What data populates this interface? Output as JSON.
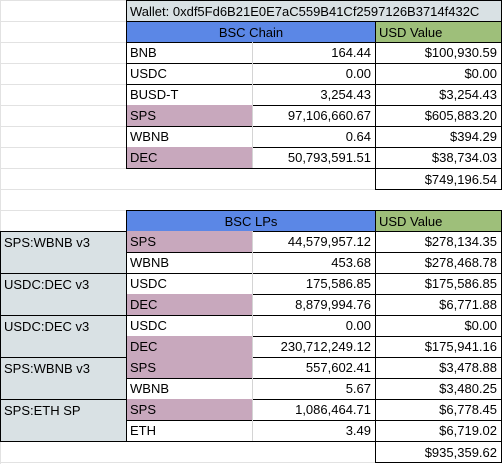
{
  "wallet_label": "Wallet: 0xdf5Fd6B21E0E7aC559B41Cf2597126B3714f432C",
  "bsc_chain": {
    "header": "BSC Chain",
    "usd_header": "USD Value",
    "rows": [
      {
        "token": "BNB",
        "amount": "164.44",
        "usd": "$100,930.59",
        "highlight": false
      },
      {
        "token": "USDC",
        "amount": "0.00",
        "usd": "$0.00",
        "highlight": false
      },
      {
        "token": "BUSD-T",
        "amount": "3,254.43",
        "usd": "$3,254.43",
        "highlight": false
      },
      {
        "token": "SPS",
        "amount": "97,106,660.67",
        "usd": "$605,883.20",
        "highlight": true
      },
      {
        "token": "WBNB",
        "amount": "0.64",
        "usd": "$394.29",
        "highlight": false
      },
      {
        "token": "DEC",
        "amount": "50,793,591.51",
        "usd": "$38,734.03",
        "highlight": true
      }
    ],
    "total": "$749,196.54"
  },
  "bsc_lps": {
    "header": "BSC LPs",
    "usd_header": "USD Value",
    "rows": [
      {
        "pair": "SPS:WBNB v3",
        "token": "SPS",
        "amount": "44,579,957.12",
        "usd": "$278,134.35",
        "highlight": true
      },
      {
        "pair": "",
        "token": "WBNB",
        "amount": "453.68",
        "usd": "$278,468.78",
        "highlight": false
      },
      {
        "pair": "USDC:DEC v3",
        "token": "USDC",
        "amount": "175,586.85",
        "usd": "$175,586.85",
        "highlight": false
      },
      {
        "pair": "",
        "token": "DEC",
        "amount": "8,879,994.76",
        "usd": "$6,771.88",
        "highlight": true
      },
      {
        "pair": "USDC:DEC v3",
        "token": "USDC",
        "amount": "0.00",
        "usd": "$0.00",
        "highlight": false
      },
      {
        "pair": "",
        "token": "DEC",
        "amount": "230,712,249.12",
        "usd": "$175,941.16",
        "highlight": true
      },
      {
        "pair": "SPS:WBNB v3",
        "token": "SPS",
        "amount": "557,602.41",
        "usd": "$3,478.88",
        "highlight": true
      },
      {
        "pair": "",
        "token": "WBNB",
        "amount": "5.67",
        "usd": "$3,480.25",
        "highlight": false
      },
      {
        "pair": "SPS:ETH SP",
        "token": "SPS",
        "amount": "1,086,464.71",
        "usd": "$6,778.45",
        "highlight": true
      },
      {
        "pair": "",
        "token": "ETH",
        "amount": "3.49",
        "usd": "$6,719.02",
        "highlight": false
      }
    ],
    "total": "$935,359.62"
  },
  "colors": {
    "header_blue": "#5b87e6",
    "header_green": "#9ebf7a",
    "highlight_pink": "#c8a8bd",
    "pair_gray": "#d9e1e4"
  }
}
